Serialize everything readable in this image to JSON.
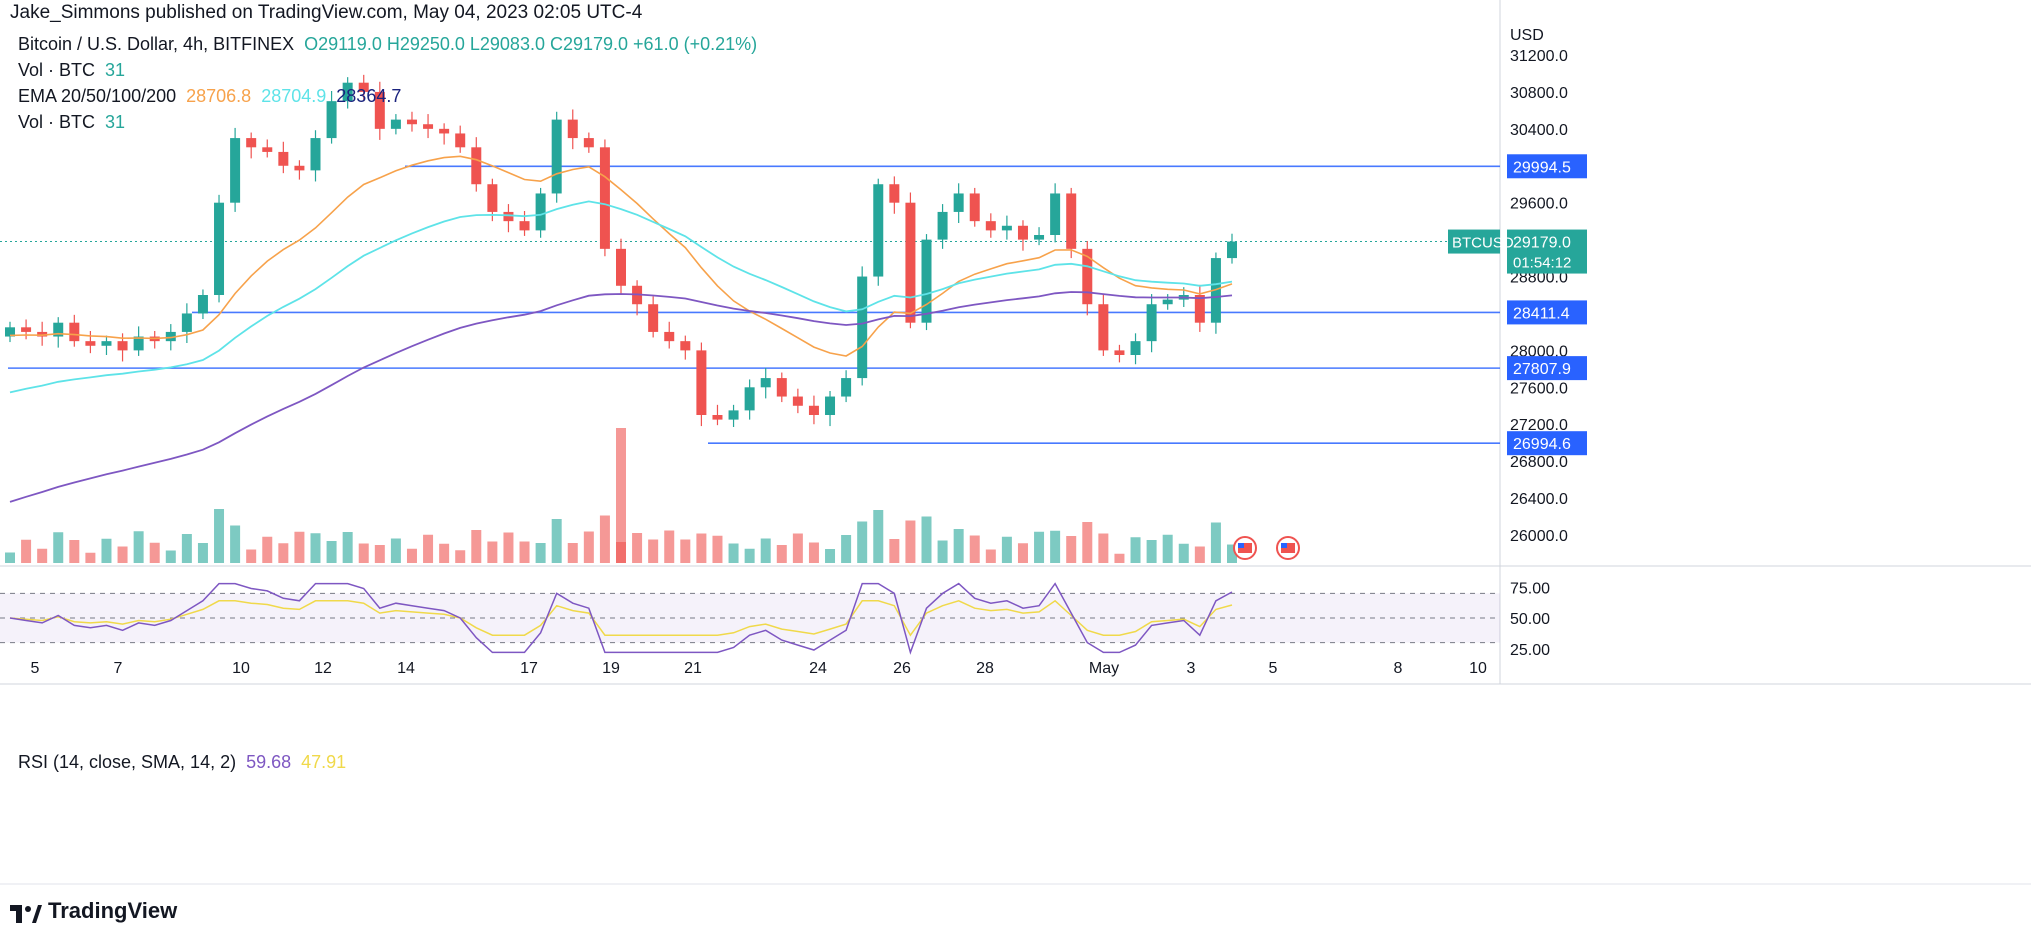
{
  "header": {
    "credit": "Jake_Simmons published on TradingView.com, May 04, 2023 02:05 UTC-4",
    "symbol": "Bitcoin / U.S. Dollar, 4h, BITFINEX",
    "ohlc": "O29119.0  H29250.0  L29083.0  C29179.0  +61.0 (+0.21%)",
    "vol1_label": "Vol · BTC",
    "vol1_value": "31",
    "ema_label": "EMA 20/50/100/200",
    "ema20": "28706.8",
    "ema50": "28704.9",
    "ema100": "28364.7",
    "vol2_label": "Vol · BTC",
    "vol2_value": "31"
  },
  "price_axis": {
    "currency": "USD",
    "ticks": [
      "31200.0",
      "30800.0",
      "30400.0",
      "29600.0",
      "28800.0",
      "28000.0",
      "27600.0",
      "27200.0",
      "26800.0",
      "26400.0",
      "26000.0"
    ],
    "badges": [
      "29994.5",
      "28411.4",
      "27807.9",
      "26994.6"
    ],
    "current_price": "29179.0",
    "countdown": "01:54:12",
    "ticker": "BTCUSD"
  },
  "rsi": {
    "label": "RSI (14, close, SMA, 14, 2)",
    "value": "59.68",
    "sma": "47.91",
    "ticks": [
      "75.00",
      "50.00",
      "25.00"
    ]
  },
  "time_axis": {
    "labels": [
      "5",
      "7",
      "10",
      "12",
      "14",
      "17",
      "19",
      "21",
      "24",
      "26",
      "28",
      "May",
      "3",
      "5",
      "8",
      "10"
    ]
  },
  "brand": "TradingView",
  "chart_data": {
    "type": "candlestick",
    "ylim": [
      25800,
      31400
    ],
    "horizontal_levels": [
      29994.5,
      28411.4,
      27807.9,
      26994.6
    ],
    "close_series_approx": [
      28250,
      28200,
      28150,
      28300,
      28100,
      28050,
      28100,
      28000,
      28150,
      28100,
      28200,
      28400,
      28600,
      29600,
      30300,
      30200,
      30150,
      30000,
      29950,
      30300,
      30700,
      30900,
      30800,
      30400,
      30500,
      30450,
      30400,
      30350,
      30200,
      29800,
      29500,
      29400,
      29300,
      29700,
      30500,
      30300,
      30200,
      29100,
      28700,
      28500,
      28200,
      28100,
      28000,
      27300,
      27250,
      27350,
      27600,
      27700,
      27500,
      27400,
      27300,
      27500,
      27700,
      28800,
      29800,
      29600,
      28300,
      29200,
      29500,
      29700,
      29400,
      29300,
      29350,
      29200,
      29250,
      29700,
      29100,
      28500,
      28000,
      27950,
      28100,
      28500,
      28550,
      28600,
      28300,
      29000,
      29179
    ],
    "rsi": {
      "value": 59.68,
      "sma": 47.91,
      "ylim": [
        20,
        80
      ]
    }
  }
}
